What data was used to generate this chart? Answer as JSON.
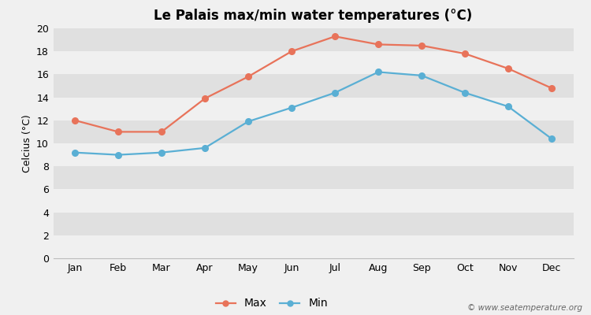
{
  "title": "Le Palais max/min water temperatures (°C)",
  "ylabel": "Celcius (°C)",
  "months": [
    "Jan",
    "Feb",
    "Mar",
    "Apr",
    "May",
    "Jun",
    "Jul",
    "Aug",
    "Sep",
    "Oct",
    "Nov",
    "Dec"
  ],
  "max_temps": [
    12.0,
    11.0,
    11.0,
    13.9,
    15.8,
    18.0,
    19.3,
    18.6,
    18.5,
    17.8,
    16.5,
    14.8
  ],
  "min_temps": [
    9.2,
    9.0,
    9.2,
    9.6,
    11.9,
    13.1,
    14.4,
    16.2,
    15.9,
    14.4,
    13.2,
    10.4
  ],
  "max_color": "#e8735a",
  "min_color": "#5aafd4",
  "background_color": "#f0f0f0",
  "plot_bg_color": "#e8e8e8",
  "band_color_light": "#f0f0f0",
  "band_color_dark": "#e0e0e0",
  "ylim": [
    0,
    20
  ],
  "yticks": [
    0,
    2,
    4,
    6,
    8,
    10,
    12,
    14,
    16,
    18,
    20
  ],
  "legend_labels": [
    "Max",
    "Min"
  ],
  "watermark": "© www.seatemperature.org",
  "title_fontsize": 12,
  "axis_fontsize": 9,
  "legend_fontsize": 10,
  "watermark_fontsize": 7.5
}
